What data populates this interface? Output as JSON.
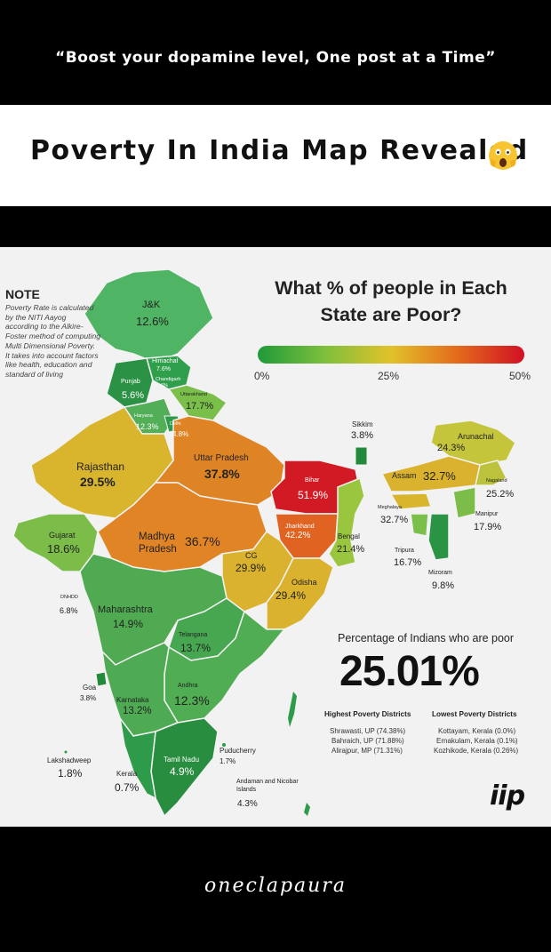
{
  "header": {
    "quote": "“Boost your dopamine level, One post at a Time”",
    "title": "Poverty In India Map Revealed",
    "title_emoji": "screaming-face-emoji"
  },
  "note": {
    "title": "NOTE",
    "body": "Poverty Rate is calculated by the NITI Aayog according to the Alkire-Foster method of computing Multi Dimensional Poverty. It takes into account factors like health, education and standard of living"
  },
  "infographic": {
    "headline_line1": "What % of people in Each",
    "headline_line2": "State are Poor?",
    "scale": {
      "min": "0%",
      "mid": "25%",
      "max": "50%",
      "colors": [
        "#1f9a3a",
        "#7dbf3c",
        "#e2c22a",
        "#e46a1c",
        "#d11024"
      ]
    }
  },
  "states": [
    {
      "name": "J&K",
      "value": "12.6%"
    },
    {
      "name": "Himachal",
      "value": "7.6%"
    },
    {
      "name": "Chandigarh",
      "value": "6%"
    },
    {
      "name": "Punjab",
      "value": "5.6%"
    },
    {
      "name": "Uttarakhand",
      "value": "17.7%"
    },
    {
      "name": "Haryana",
      "value": "12.3%"
    },
    {
      "name": "Delhi",
      "value": "4.8%"
    },
    {
      "name": "Rajasthan",
      "value": "29.5%"
    },
    {
      "name": "Uttar Pradesh",
      "value": "37.8%"
    },
    {
      "name": "Bihar",
      "value": "51.9%"
    },
    {
      "name": "Sikkim",
      "value": "3.8%"
    },
    {
      "name": "Arunachal",
      "value": "24.3%"
    },
    {
      "name": "Assam",
      "value": "32.7%"
    },
    {
      "name": "Nagaland",
      "value": "25.2%"
    },
    {
      "name": "Meghalaya",
      "value": "32.7%"
    },
    {
      "name": "Manipur",
      "value": "17.9%"
    },
    {
      "name": "Gujarat",
      "value": "18.6%"
    },
    {
      "name": "Madhya Pradesh",
      "value": "36.7%"
    },
    {
      "name": "Jharkhand",
      "value": "42.2%"
    },
    {
      "name": "Bengal",
      "value": "21.4%"
    },
    {
      "name": "Tripura",
      "value": "16.7%"
    },
    {
      "name": "CG",
      "value": "29.9%"
    },
    {
      "name": "Odisha",
      "value": "29.4%"
    },
    {
      "name": "Mizoram",
      "value": "9.8%"
    },
    {
      "name": "DNHDD",
      "value": "6.8%"
    },
    {
      "name": "Maharashtra",
      "value": "14.9%"
    },
    {
      "name": "Telangana",
      "value": "13.7%"
    },
    {
      "name": "Goa",
      "value": "3.8%"
    },
    {
      "name": "Andhra",
      "value": "12.3%"
    },
    {
      "name": "Karnataka",
      "value": "13.2%"
    },
    {
      "name": "Puducherry",
      "value": "1.7%"
    },
    {
      "name": "Lakshadweep",
      "value": "1.8%"
    },
    {
      "name": "Tamil Nadu",
      "value": "4.9%"
    },
    {
      "name": "Kerala",
      "value": "0.7%"
    },
    {
      "name": "Andaman and Nicobar Islands",
      "value": "4.3%"
    }
  ],
  "summary": {
    "title": "Percentage of Indians who are poor",
    "value": "25.01%",
    "highest_title": "Highest Poverty Districts",
    "lowest_title": "Lowest Poverty Districts",
    "highest": [
      "Shrawasti, UP (74.38%)",
      "Bahraich, UP (71.88%)",
      "Alirajpur, MP (71.31%)"
    ],
    "lowest": [
      "Kottayam, Kerala (0.0%)",
      "Ernakulam, Kerala (0.1%)",
      "Kozhikode, Kerala (0.26%)"
    ]
  },
  "brand": {
    "logo": "iip",
    "watermark": "oneclapaura"
  }
}
